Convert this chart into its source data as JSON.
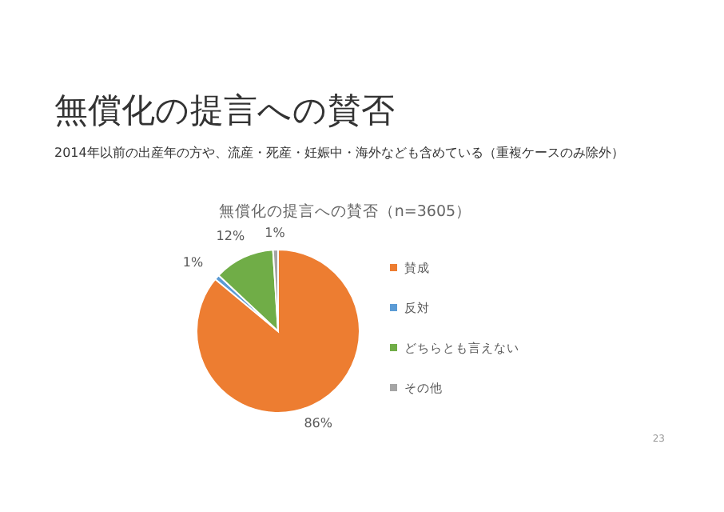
{
  "chart_data": {
    "type": "pie",
    "title": "無償化の提言への賛否（n=3605）",
    "annotations": [
      "無償化の提言への賛否",
      "2014年以前の出産年の方や、流産・死産・妊娠中・海外なども含めている（重複ケースのみ除外）",
      "23"
    ],
    "categories": [
      "賛成",
      "反対",
      "どちらとも言えない",
      "その他"
    ],
    "values": [
      86,
      1,
      12,
      1
    ],
    "colors": [
      "#ed7d31",
      "#5b9bd5",
      "#70ad47",
      "#a5a5a5"
    ],
    "value_labels": [
      "86%",
      "1%",
      "12%",
      "1%"
    ],
    "legend": "right"
  }
}
